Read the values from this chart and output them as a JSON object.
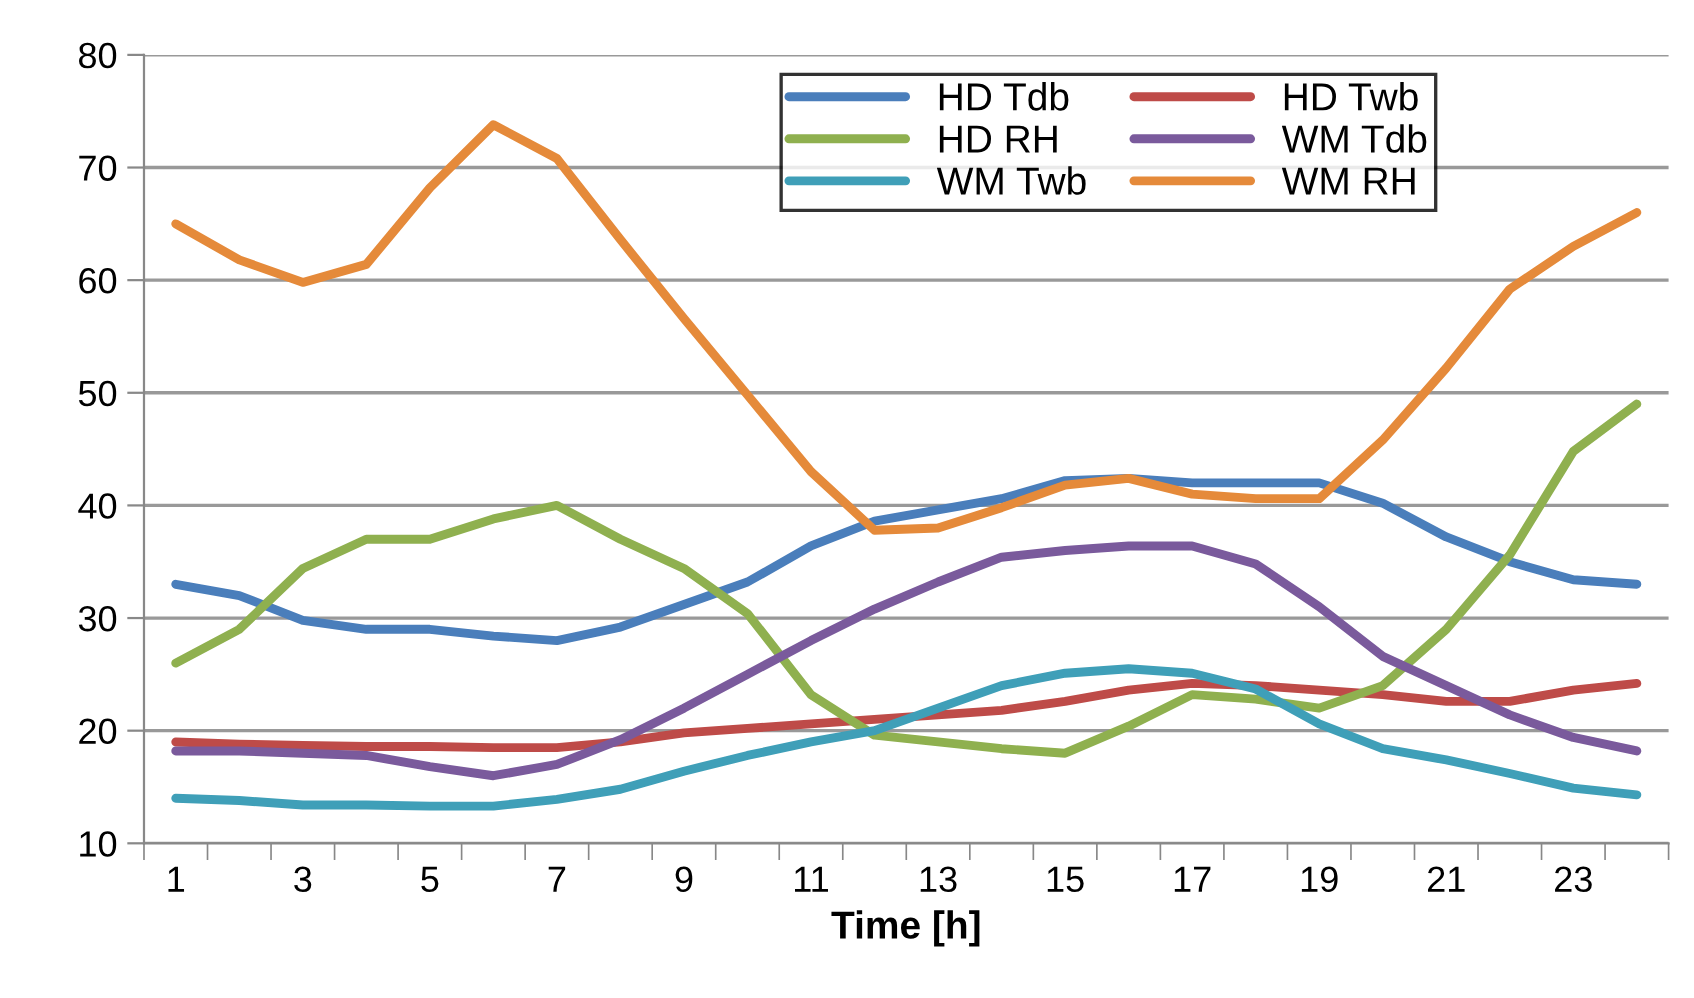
{
  "chart_data": {
    "type": "line",
    "xlabel": "Time [h]",
    "categories": [
      "1",
      null,
      "3",
      null,
      "5",
      null,
      "7",
      null,
      "9",
      null,
      "11",
      null,
      "13",
      null,
      "15",
      null,
      "17",
      null,
      "19",
      null,
      "21",
      null,
      "23",
      null
    ],
    "series": [
      {
        "name": "HD Tdb",
        "color": "#4a7ebb",
        "values": [
          33,
          32,
          29.8,
          29,
          29,
          28.4,
          28,
          29.2,
          31.2,
          33.2,
          36.4,
          38.6,
          39.6,
          40.6,
          42.2,
          42.4,
          42,
          42,
          42,
          40.2,
          37.2,
          35,
          33.4,
          33
        ]
      },
      {
        "name": "HD Twb",
        "color": "#be4b48",
        "values": [
          19,
          18.8,
          18.7,
          18.6,
          18.6,
          18.5,
          18.5,
          19,
          19.8,
          20.2,
          20.6,
          21,
          21.4,
          21.8,
          22.6,
          23.6,
          24.2,
          24,
          23.6,
          23.2,
          22.6,
          22.6,
          23.6,
          24.2
        ]
      },
      {
        "name": "HD RH",
        "color": "#8fb04f",
        "values": [
          26,
          29,
          34.4,
          37,
          37,
          38.8,
          40,
          37,
          34.4,
          30.4,
          23.2,
          19.6,
          19,
          18.4,
          18,
          20.4,
          23.2,
          22.8,
          22,
          24,
          29,
          35.6,
          44.8,
          49
        ]
      },
      {
        "name": "WM Tdb",
        "color": "#7a5a9c",
        "values": [
          18.2,
          18.2,
          18,
          17.8,
          16.8,
          16,
          17,
          19.2,
          22,
          25,
          28,
          30.8,
          33.2,
          35.4,
          36,
          36.4,
          36.4,
          34.8,
          31,
          26.6,
          24,
          21.4,
          19.4,
          18.2
        ]
      },
      {
        "name": "WM Twb",
        "color": "#3f9fb8",
        "values": [
          14,
          13.8,
          13.4,
          13.4,
          13.3,
          13.3,
          13.9,
          14.8,
          16.4,
          17.8,
          19,
          20,
          22,
          24,
          25.1,
          25.5,
          25.1,
          23.7,
          20.6,
          18.4,
          17.4,
          16.2,
          14.9,
          14.3
        ]
      },
      {
        "name": "WM RH",
        "color": "#e58a3a",
        "values": [
          65,
          61.8,
          59.8,
          61.4,
          68.2,
          73.8,
          70.8,
          63.6,
          56.6,
          49.8,
          43,
          37.8,
          38,
          39.8,
          41.8,
          42.4,
          41,
          40.6,
          40.6,
          45.8,
          52.2,
          59.2,
          63,
          66
        ]
      }
    ],
    "ylim": [
      10,
      80
    ],
    "yticks": [
      10,
      20,
      30,
      40,
      50,
      60,
      70,
      80
    ],
    "grid": "y",
    "legend": "top right",
    "marker": "none",
    "line_style": "solid"
  }
}
